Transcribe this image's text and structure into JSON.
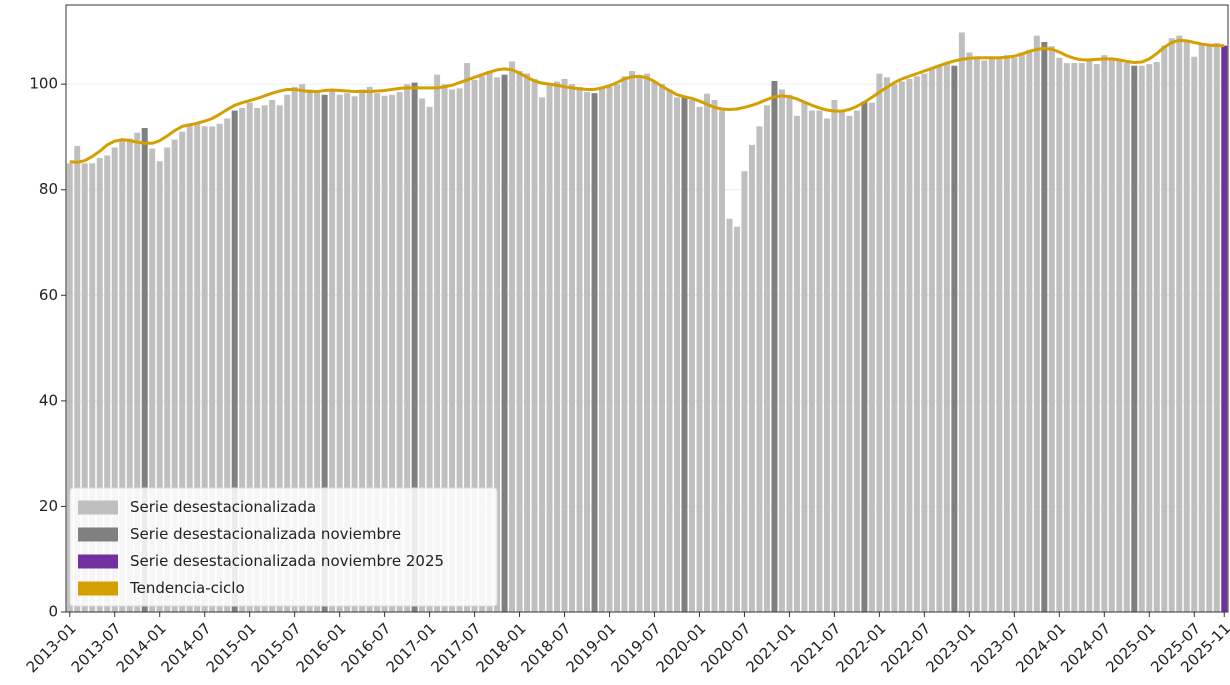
{
  "chart_data": {
    "type": "bar",
    "categories": [
      "2013-01",
      null,
      null,
      null,
      null,
      null,
      "2013-07",
      null,
      null,
      null,
      null,
      null,
      "2014-01",
      null,
      null,
      null,
      null,
      null,
      "2014-07",
      null,
      null,
      null,
      null,
      null,
      "2015-01",
      null,
      null,
      null,
      null,
      null,
      "2015-07",
      null,
      null,
      null,
      null,
      null,
      "2016-01",
      null,
      null,
      null,
      null,
      null,
      "2016-07",
      null,
      null,
      null,
      null,
      null,
      "2017-01",
      null,
      null,
      null,
      null,
      null,
      "2017-07",
      null,
      null,
      null,
      null,
      null,
      "2018-01",
      null,
      null,
      null,
      null,
      null,
      "2018-07",
      null,
      null,
      null,
      null,
      null,
      "2019-01",
      null,
      null,
      null,
      null,
      null,
      "2019-07",
      null,
      null,
      null,
      null,
      null,
      "2020-01",
      null,
      null,
      null,
      null,
      null,
      "2020-07",
      null,
      null,
      null,
      null,
      null,
      "2021-01",
      null,
      null,
      null,
      null,
      null,
      "2021-07",
      null,
      null,
      null,
      null,
      null,
      "2022-01",
      null,
      null,
      null,
      null,
      null,
      "2022-07",
      null,
      null,
      null,
      null,
      null,
      "2023-01",
      null,
      null,
      null,
      null,
      null,
      "2023-07",
      null,
      null,
      null,
      null,
      null,
      "2024-01",
      null,
      null,
      null,
      null,
      null,
      "2024-07",
      null,
      null,
      null,
      null,
      null,
      "2025-01",
      null,
      null,
      null,
      null,
      null,
      "2025-07",
      null,
      null,
      null,
      "2025-11"
    ],
    "series": [
      {
        "name": "Serie desestacionalizada",
        "color": "#bfbfbf",
        "values": [
          85,
          88.3,
          85,
          85,
          86,
          86.5,
          88,
          89.5,
          89.7,
          90.8,
          null,
          87.8,
          85.4,
          88,
          89.5,
          91,
          92.5,
          92.8,
          92,
          92,
          92.5,
          93.5,
          null,
          95.5,
          96.5,
          95.5,
          96,
          97,
          96,
          98,
          99.5,
          100,
          99,
          98.5,
          null,
          99,
          98,
          98.3,
          97.7,
          99,
          99.5,
          98.3,
          97.8,
          98,
          98.5,
          100,
          null,
          97.3,
          95.7,
          101.8,
          100,
          99,
          99.2,
          104,
          100.8,
          101.5,
          102.5,
          101.3,
          null,
          104.3,
          102.5,
          102,
          101,
          97.5,
          100,
          100.5,
          101,
          100,
          99.5,
          98.5,
          null,
          99.5,
          99.5,
          100,
          101.5,
          102.5,
          101.5,
          102,
          100.5,
          100,
          99,
          97.5,
          null,
          97,
          95.7,
          98.2,
          97,
          95,
          74.5,
          73,
          83.5,
          88.5,
          92,
          96,
          null,
          99,
          98,
          94,
          96.5,
          95,
          95,
          93.5,
          97,
          95,
          94,
          95,
          null,
          96.5,
          102,
          101.3,
          100,
          100.5,
          101,
          101.5,
          102,
          103,
          103.5,
          104,
          null,
          109.8,
          106,
          105,
          104.5,
          105,
          105,
          105.5,
          105,
          106,
          106.5,
          109.2,
          null,
          107.2,
          105,
          104,
          104,
          104,
          104.5,
          103.8,
          105.5,
          105,
          104.5,
          104,
          null,
          103.5,
          103.8,
          104.2,
          107.3,
          108.7,
          109.2,
          108,
          105.2,
          107.5,
          107.3,
          107.8,
          null
        ]
      },
      {
        "name": "Serie desestacionalizada noviembre",
        "color": "#808080",
        "values": [
          null,
          null,
          null,
          null,
          null,
          null,
          null,
          null,
          null,
          null,
          91.7,
          null,
          null,
          null,
          null,
          null,
          null,
          null,
          null,
          null,
          null,
          null,
          95,
          null,
          null,
          null,
          null,
          null,
          null,
          null,
          null,
          null,
          null,
          null,
          98,
          null,
          null,
          null,
          null,
          null,
          null,
          null,
          null,
          null,
          null,
          null,
          100.3,
          null,
          null,
          null,
          null,
          null,
          null,
          null,
          null,
          null,
          null,
          null,
          101.8,
          null,
          null,
          null,
          null,
          null,
          null,
          null,
          null,
          null,
          null,
          null,
          98.3,
          null,
          null,
          null,
          null,
          null,
          null,
          null,
          null,
          null,
          null,
          null,
          97.8,
          null,
          null,
          null,
          null,
          null,
          null,
          null,
          null,
          null,
          null,
          null,
          100.6,
          null,
          null,
          null,
          null,
          null,
          null,
          null,
          null,
          null,
          null,
          null,
          96.7,
          null,
          null,
          null,
          null,
          null,
          null,
          null,
          null,
          null,
          null,
          null,
          103.5,
          null,
          null,
          null,
          null,
          null,
          null,
          null,
          null,
          null,
          null,
          null,
          108,
          null,
          null,
          null,
          null,
          null,
          null,
          null,
          null,
          null,
          null,
          null,
          103.5,
          null,
          null,
          null,
          null,
          null,
          null,
          null,
          null,
          null,
          null,
          null,
          null
        ]
      },
      {
        "name": "Serie desestacionalizada noviembre 2025",
        "color": "#7030a0",
        "values": [
          null,
          null,
          null,
          null,
          null,
          null,
          null,
          null,
          null,
          null,
          null,
          null,
          null,
          null,
          null,
          null,
          null,
          null,
          null,
          null,
          null,
          null,
          null,
          null,
          null,
          null,
          null,
          null,
          null,
          null,
          null,
          null,
          null,
          null,
          null,
          null,
          null,
          null,
          null,
          null,
          null,
          null,
          null,
          null,
          null,
          null,
          null,
          null,
          null,
          null,
          null,
          null,
          null,
          null,
          null,
          null,
          null,
          null,
          null,
          null,
          null,
          null,
          null,
          null,
          null,
          null,
          null,
          null,
          null,
          null,
          null,
          null,
          null,
          null,
          null,
          null,
          null,
          null,
          null,
          null,
          null,
          null,
          null,
          null,
          null,
          null,
          null,
          null,
          null,
          null,
          null,
          null,
          null,
          null,
          null,
          null,
          null,
          null,
          null,
          null,
          null,
          null,
          null,
          null,
          null,
          null,
          null,
          null,
          null,
          null,
          null,
          null,
          null,
          null,
          null,
          null,
          null,
          null,
          null,
          null,
          null,
          null,
          null,
          null,
          null,
          null,
          null,
          null,
          null,
          null,
          null,
          null,
          null,
          null,
          null,
          null,
          null,
          null,
          null,
          null,
          null,
          null,
          null,
          null,
          null,
          null,
          null,
          null,
          null,
          null,
          null,
          null,
          null,
          null,
          107.3
        ]
      },
      {
        "name": "Tendencia-ciclo",
        "type": "line",
        "color": "#d4a000",
        "values": [
          85.3,
          85.2,
          85.5,
          86.3,
          87.3,
          88.5,
          89.2,
          89.5,
          89.3,
          89,
          88.8,
          88.8,
          89.3,
          90.2,
          91.2,
          92,
          92.3,
          92.6,
          93,
          93.5,
          94.3,
          95.2,
          96,
          96.5,
          96.9,
          97.3,
          97.8,
          98.3,
          98.7,
          99,
          99,
          98.8,
          98.6,
          98.6,
          98.8,
          98.9,
          98.8,
          98.7,
          98.6,
          98.6,
          98.6,
          98.7,
          98.8,
          99,
          99.2,
          99.3,
          99.3,
          99.3,
          99.3,
          99.3,
          99.5,
          99.8,
          100.3,
          100.8,
          101.3,
          101.8,
          102.3,
          102.7,
          102.9,
          102.7,
          102.1,
          101.3,
          100.6,
          100.2,
          100,
          99.8,
          99.5,
          99.3,
          99.1,
          99,
          99,
          99.3,
          99.7,
          100.3,
          101,
          101.4,
          101.5,
          101.2,
          100.5,
          99.6,
          98.8,
          98,
          97.6,
          97.3,
          96.8,
          96.2,
          95.6,
          95.3,
          95.2,
          95.3,
          95.6,
          96,
          96.5,
          97.1,
          97.6,
          97.8,
          97.6,
          97.2,
          96.6,
          96,
          95.5,
          95.1,
          94.9,
          94.9,
          95.2,
          95.8,
          96.6,
          97.5,
          98.5,
          99.4,
          100.3,
          101,
          101.5,
          102,
          102.5,
          103,
          103.5,
          104,
          104.4,
          104.7,
          104.9,
          105,
          105,
          105,
          105,
          105.1,
          105.3,
          105.7,
          106.2,
          106.6,
          106.8,
          106.6,
          106.1,
          105.4,
          104.9,
          104.6,
          104.6,
          104.7,
          104.8,
          104.8,
          104.6,
          104.3,
          104.1,
          104.2,
          104.8,
          105.8,
          107,
          107.9,
          108.3,
          108.2,
          107.9,
          107.6,
          107.4,
          107.3,
          107.3
        ]
      }
    ],
    "ylim": [
      0,
      115
    ],
    "yticks": [
      0,
      20,
      40,
      60,
      80,
      100
    ],
    "grid": true,
    "legend": "lower left"
  }
}
